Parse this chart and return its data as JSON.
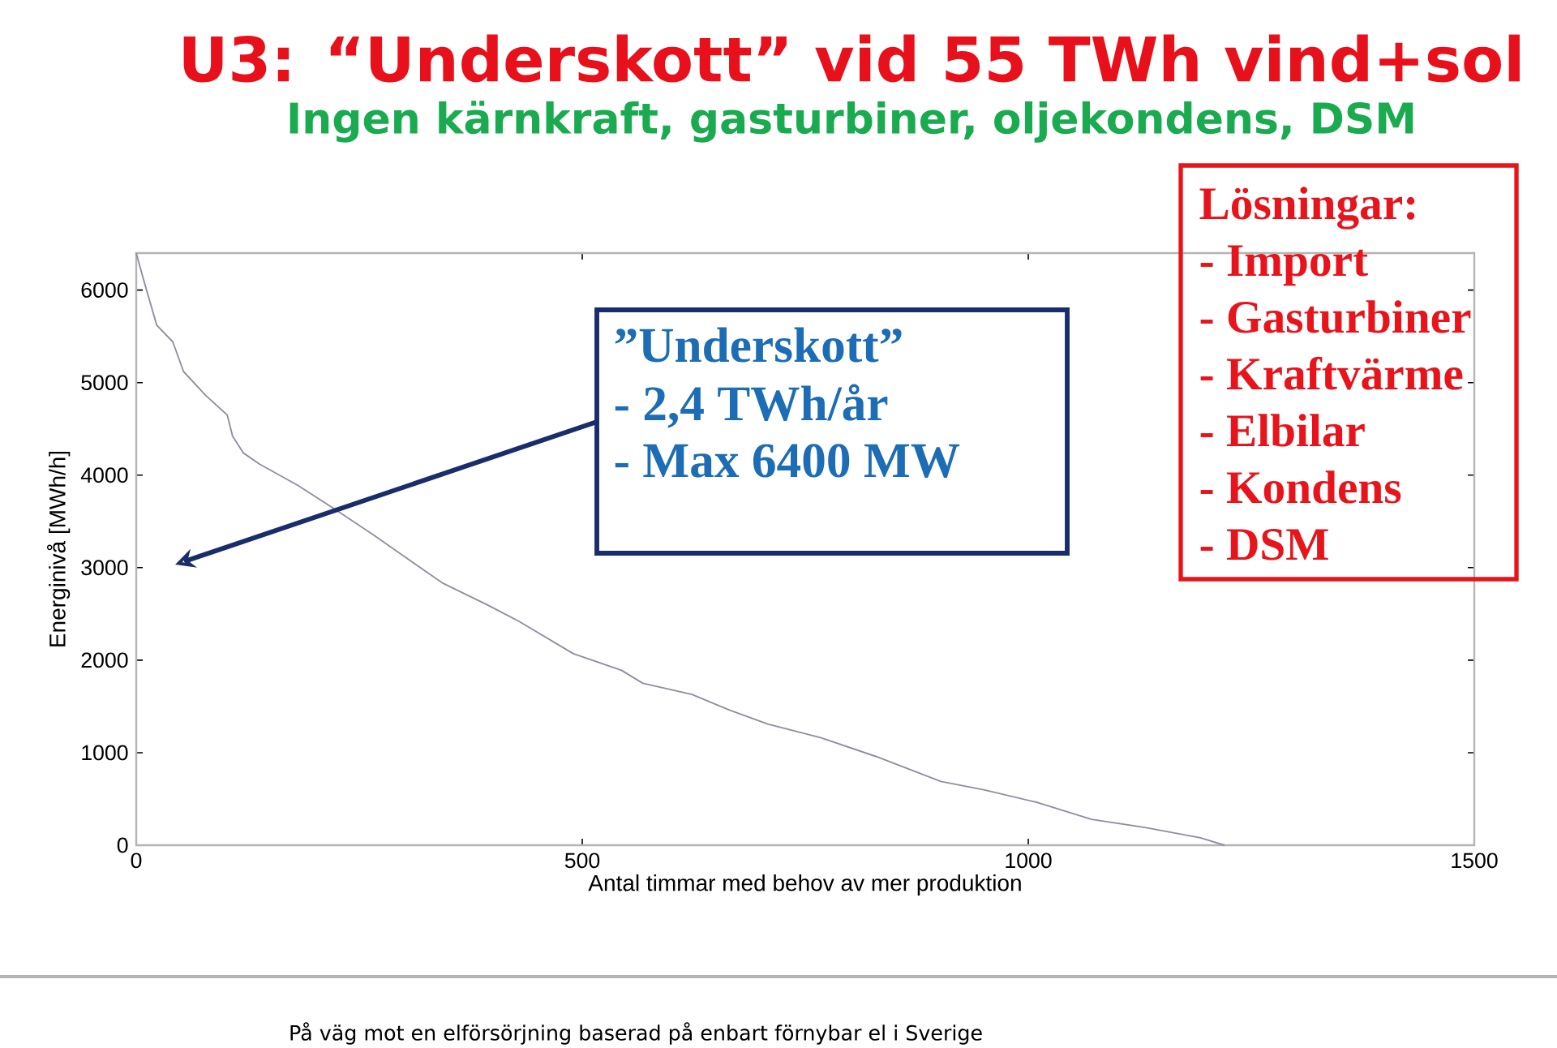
{
  "chart_data": {
    "type": "line",
    "title": "U3: “Underskott” vid 55 TWh vind+sol",
    "subtitle": "Ingen kärnkraft, gasturbiner, oljekondens, DSM",
    "xlabel": "Antal timmar med behov av mer produktion",
    "ylabel": "Energinivå [MWh/h]",
    "annotations": [
      "”Underskott”",
      "- 2,4 TWh/år",
      "- Max 6400 MW",
      "Lösningar:",
      "- Import",
      "- Gasturbiner",
      "- Kraftvärme",
      "- Elbilar",
      "- Kondens",
      "- DSM",
      "På väg mot en elförsörjning baserad på enbart förnybar el i Sverige"
    ],
    "x": [
      0,
      8,
      23,
      41,
      53,
      78,
      102,
      108,
      120,
      138,
      181,
      223,
      265,
      308,
      344,
      393,
      429,
      490,
      544,
      568,
      623,
      665,
      708,
      768,
      829,
      902,
      950,
      1011,
      1071,
      1132,
      1193,
      1220
    ],
    "series": [
      {
        "color": "#8e8ea2",
        "values": [
          6400,
          6120,
          5620,
          5440,
          5120,
          4860,
          4650,
          4420,
          4240,
          4120,
          3890,
          3630,
          3360,
          3070,
          2830,
          2600,
          2420,
          2070,
          1890,
          1750,
          1630,
          1460,
          1310,
          1160,
          960,
          690,
          600,
          460,
          280,
          190,
          80,
          0
        ]
      }
    ],
    "xlim": [
      0,
      1500
    ],
    "ylim": [
      0,
      6400
    ],
    "xticks": [
      0,
      500,
      1000,
      1500
    ],
    "yticks": [
      0,
      1000,
      2000,
      3000,
      4000,
      5000,
      6000
    ]
  }
}
